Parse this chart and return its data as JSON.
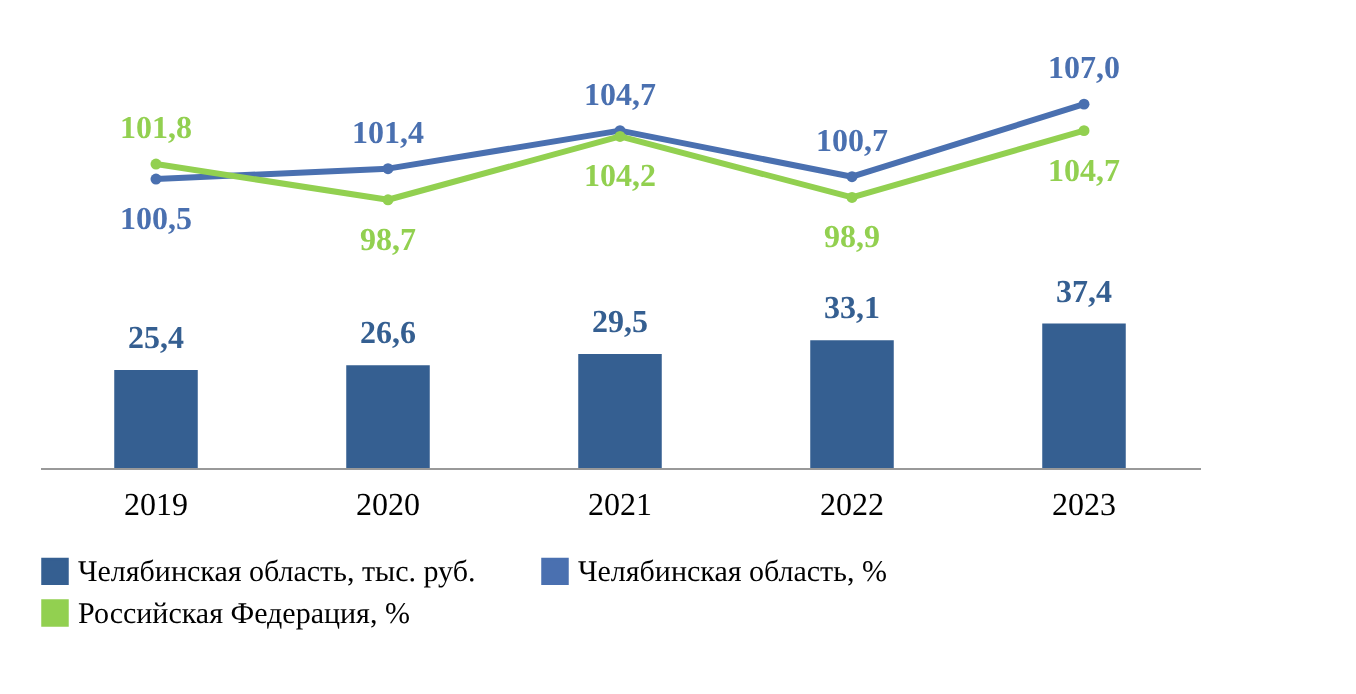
{
  "chart_data": [
    {
      "type": "line",
      "categories": [
        "2019",
        "2020",
        "2021",
        "2022",
        "2023"
      ],
      "series": [
        {
          "name": "Челябинская область, %",
          "color": "#4a70b0",
          "values": [
            100.5,
            101.4,
            104.7,
            100.7,
            107.0
          ],
          "value_labels": [
            "100,5",
            "101,4",
            "104,7",
            "100,7",
            "107,0"
          ]
        },
        {
          "name": "Российская Федерация, %",
          "color": "#92d050",
          "values": [
            101.8,
            98.7,
            104.2,
            98.9,
            104.7
          ],
          "value_labels": [
            "101,8",
            "98,7",
            "104,2",
            "98,9",
            "104,7"
          ]
        }
      ],
      "tick_labels": false,
      "marker": "circle",
      "legend": "bottom"
    },
    {
      "type": "bar",
      "categories": [
        "2019",
        "2020",
        "2021",
        "2022",
        "2023"
      ],
      "series": [
        {
          "name": "Челябинская область, тыс. руб.",
          "color": "#355f91",
          "values": [
            25.4,
            26.6,
            29.5,
            33.1,
            37.4
          ],
          "value_labels": [
            "25,4",
            "26,6",
            "29,5",
            "33,1",
            "37,4"
          ]
        }
      ],
      "tick_labels": "x",
      "legend": "bottom"
    }
  ]
}
